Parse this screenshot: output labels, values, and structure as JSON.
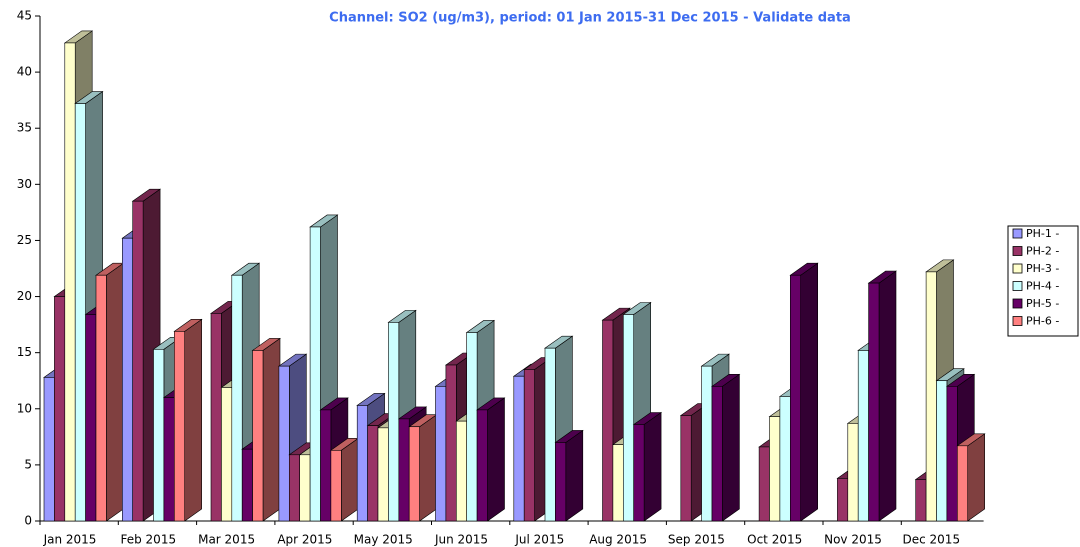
{
  "chart_data": {
    "type": "bar3d",
    "title": "Channel: SO2 (ug/m3), period: 01 Jan 2015-31 Dec 2015 - Validate data",
    "categories": [
      "Jan 2015",
      "Feb 2015",
      "Mar 2015",
      "Apr 2015",
      "May 2015",
      "Jun 2015",
      "Jul 2015",
      "Aug 2015",
      "Sep 2015",
      "Oct 2015",
      "Nov 2015",
      "Dec 2015"
    ],
    "series": [
      {
        "name": "PH-1 -",
        "color": "#9999ff",
        "values": [
          12.8,
          25.2,
          null,
          13.8,
          10.3,
          12.0,
          12.9,
          null,
          null,
          null,
          null,
          null
        ]
      },
      {
        "name": "PH-2 -",
        "color": "#993366",
        "values": [
          20.0,
          28.5,
          18.5,
          5.9,
          8.5,
          13.9,
          13.5,
          17.9,
          9.4,
          6.6,
          3.8,
          3.7
        ]
      },
      {
        "name": "PH-3 -",
        "color": "#ffffcc",
        "values": [
          42.6,
          null,
          11.9,
          5.9,
          8.3,
          8.9,
          null,
          6.8,
          null,
          9.3,
          8.7,
          22.2
        ]
      },
      {
        "name": "PH-4 -",
        "color": "#ccffff",
        "values": [
          37.2,
          15.3,
          21.9,
          26.2,
          17.7,
          16.8,
          15.4,
          18.4,
          13.8,
          11.1,
          15.2,
          12.5
        ]
      },
      {
        "name": "PH-5 -",
        "color": "#660066",
        "values": [
          18.4,
          11.0,
          6.4,
          9.9,
          9.1,
          9.9,
          7.0,
          8.6,
          12.0,
          21.9,
          21.2,
          12.0
        ]
      },
      {
        "name": "PH-6 -",
        "color": "#ff8080",
        "values": [
          21.9,
          16.9,
          15.2,
          6.3,
          8.4,
          null,
          null,
          null,
          null,
          null,
          null,
          6.7
        ]
      }
    ],
    "ylim": [
      0,
      45
    ],
    "yticks": [
      0,
      5,
      10,
      15,
      20,
      25,
      30,
      35,
      40,
      45
    ],
    "legend": "right"
  }
}
